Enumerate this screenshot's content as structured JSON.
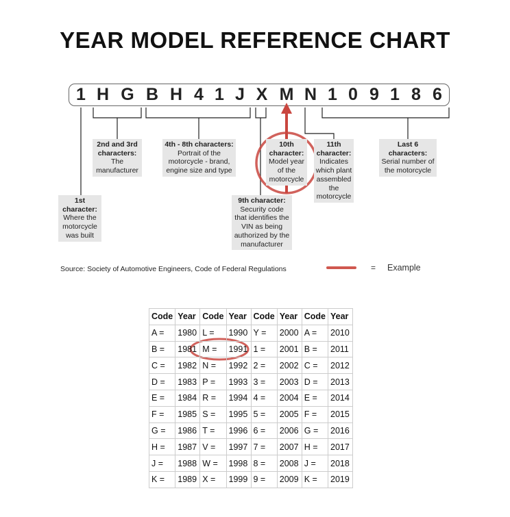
{
  "title": "YEAR MODEL REFERENCE CHART",
  "vin": [
    "1",
    "H",
    "G",
    "B",
    "H",
    "4",
    "1",
    "J",
    "X",
    "M",
    "N",
    "1",
    "0",
    "9",
    "1",
    "8",
    "6"
  ],
  "labels": {
    "first": {
      "head": "1st character:",
      "body": "Where the motorcycle was built"
    },
    "second_third": {
      "head": "2nd and 3rd characters:",
      "body": "The manufacturer"
    },
    "fourth_eighth": {
      "head": "4th - 8th characters:",
      "body": "Portrait of the motorcycle - brand, engine size and type"
    },
    "ninth": {
      "head": "9th character:",
      "body": "Security code that identifies the VIN as being authorized by the manufacturer"
    },
    "tenth": {
      "head": "10th character:",
      "body": "Model year of the motorcycle"
    },
    "eleventh": {
      "head": "11th character:",
      "body": "Indicates which plant assembled the motorcycle"
    },
    "last6": {
      "head": "Last 6 characters:",
      "body": "Serial number of the motorcycle"
    }
  },
  "source": "Source:  Society of Automotive Engineers, Code of Federal Regulations",
  "legend": {
    "equals": "=",
    "label": "Example",
    "color": "#d0584f"
  },
  "table": {
    "headers": [
      "Code",
      "Year",
      "Code",
      "Year",
      "Code",
      "Year",
      "Code",
      "Year"
    ],
    "rows": [
      [
        "A =",
        "1980",
        "L =",
        "1990",
        "Y =",
        "2000",
        "A =",
        "2010"
      ],
      [
        "B =",
        "1981",
        "M =",
        "1991",
        "1 =",
        "2001",
        "B =",
        "2011"
      ],
      [
        "C =",
        "1982",
        "N =",
        "1992",
        "2 =",
        "2002",
        "C =",
        "2012"
      ],
      [
        "D =",
        "1983",
        "P =",
        "1993",
        "3 =",
        "2003",
        "D =",
        "2013"
      ],
      [
        "E =",
        "1984",
        "R =",
        "1994",
        "4 =",
        "2004",
        "E =",
        "2014"
      ],
      [
        "F =",
        "1985",
        "S =",
        "1995",
        "5 =",
        "2005",
        "F =",
        "2015"
      ],
      [
        "G =",
        "1986",
        "T =",
        "1996",
        "6 =",
        "2006",
        "G =",
        "2016"
      ],
      [
        "H =",
        "1987",
        "V =",
        "1997",
        "7 =",
        "2007",
        "H =",
        "2017"
      ],
      [
        "J =",
        "1988",
        "W =",
        "1998",
        "8 =",
        "2008",
        "J =",
        "2018"
      ],
      [
        "K =",
        "1989",
        "X =",
        "1999",
        "9 =",
        "2009",
        "K =",
        "2019"
      ]
    ]
  }
}
